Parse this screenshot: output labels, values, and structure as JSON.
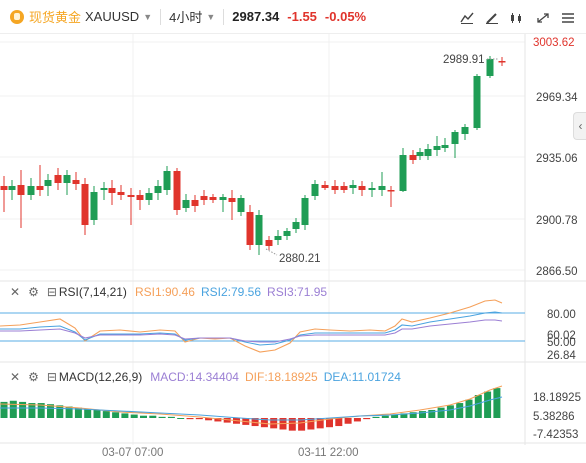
{
  "toolbar": {
    "name": "现货黄金",
    "symbol": "XAUUSD",
    "timeframe": "4小时",
    "price": "2987.34",
    "change": "-1.55",
    "change_pct": "-0.05%",
    "buttons": [
      "indicator-icon",
      "draw-icon",
      "candle-style-icon",
      "fullscreen-icon",
      "menu-icon"
    ]
  },
  "main_chart": {
    "price_axis": [
      "3003.62",
      "2969.34",
      "2935.06",
      "2900.78",
      "2866.50"
    ],
    "high_label": "2989.91",
    "low_label": "2880.21",
    "colors": {
      "up": "#1f9d55",
      "down": "#e0342c"
    }
  },
  "rsi": {
    "title": "RSI(7,14,21)",
    "rsi1": "RSI1:90.46",
    "rsi2": "RSI2:79.56",
    "rsi3": "RSI3:71.95",
    "axis": [
      "80.00",
      "60.02",
      "50.00",
      "26.84"
    ],
    "colors": {
      "rsi1": "#f5a05a",
      "rsi2": "#4aa3df",
      "rsi3": "#9b7fd4",
      "guide": "#5aaee6"
    }
  },
  "macd": {
    "title": "MACD(12,26,9)",
    "macd": "MACD:14.34404",
    "dif": "DIF:18.18925",
    "dea": "DEA:11.01724",
    "axis": [
      "18.18925",
      "5.38286",
      "-7.42353"
    ],
    "colors": {
      "macd": "#9b7fd4",
      "dif": "#f5a05a",
      "dea": "#4aa3df"
    }
  },
  "time_axis": [
    "03-07 07:00",
    "03-11 22:00"
  ]
}
